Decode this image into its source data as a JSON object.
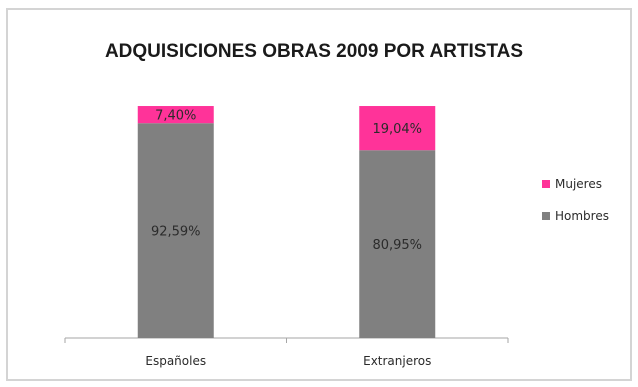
{
  "chart_data": {
    "type": "bar",
    "stacked": true,
    "title": "ADQUISICIONES OBRAS 2009 POR ARTISTAS",
    "xlabel": "",
    "ylabel": "",
    "ylim": [
      0,
      100
    ],
    "grid": false,
    "legend_position": "right",
    "categories": [
      "Españoles",
      "Extranjeros"
    ],
    "series": [
      {
        "name": "Hombres",
        "values": [
          92.59,
          80.95
        ],
        "labels": [
          "92,59%",
          "80,95%"
        ],
        "color": "#808080"
      },
      {
        "name": "Mujeres",
        "values": [
          7.4,
          19.04
        ],
        "labels": [
          "7,40%",
          "19,04%"
        ],
        "color": "#ff3399"
      }
    ],
    "legend_order": [
      "Mujeres",
      "Hombres"
    ]
  }
}
